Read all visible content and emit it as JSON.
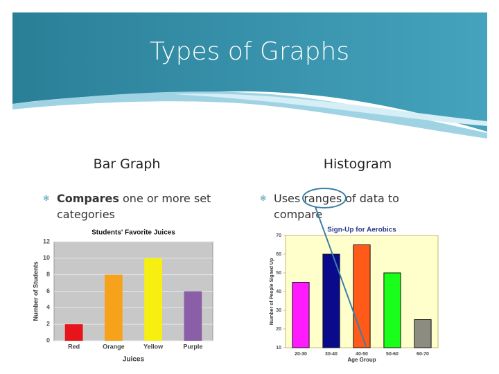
{
  "header": {
    "title": "Types of Graphs"
  },
  "columns": [
    {
      "heading": "Bar Graph",
      "bullet": {
        "bold": "Compares",
        "text": "one or more set categories"
      }
    },
    {
      "heading": "Histogram",
      "bullet": {
        "text": "Uses ranges of data to compare"
      }
    }
  ],
  "chart_data": [
    {
      "type": "bar",
      "title": "Students' Favorite Juices",
      "x_label": "Juices",
      "y_label": "Number of Students",
      "categories": [
        "Red",
        "Orange",
        "Yellow",
        "Purple"
      ],
      "values": [
        2,
        8,
        10,
        6
      ],
      "colors": [
        "#e8141b",
        "#f7a21b",
        "#f7ef0f",
        "#8b5fa8"
      ],
      "ylim": [
        0,
        12
      ],
      "yticks": [
        0,
        2,
        4,
        6,
        8,
        10,
        12
      ],
      "grid": true
    },
    {
      "type": "bar",
      "title": "Sign-Up for Aerobics",
      "x_label": "Age Group",
      "y_label": "Number of People Signed Up",
      "categories": [
        "20-30",
        "30-40",
        "40-50",
        "50-60",
        "60-70"
      ],
      "values": [
        45,
        60,
        65,
        50,
        25
      ],
      "colors": [
        "#ff1aff",
        "#0a0a8c",
        "#ff5a1a",
        "#1aff1a",
        "#8c8c80"
      ],
      "ylim": [
        10,
        70
      ],
      "yticks": [
        10,
        20,
        30,
        40,
        50,
        60,
        70
      ],
      "grid": false
    }
  ]
}
